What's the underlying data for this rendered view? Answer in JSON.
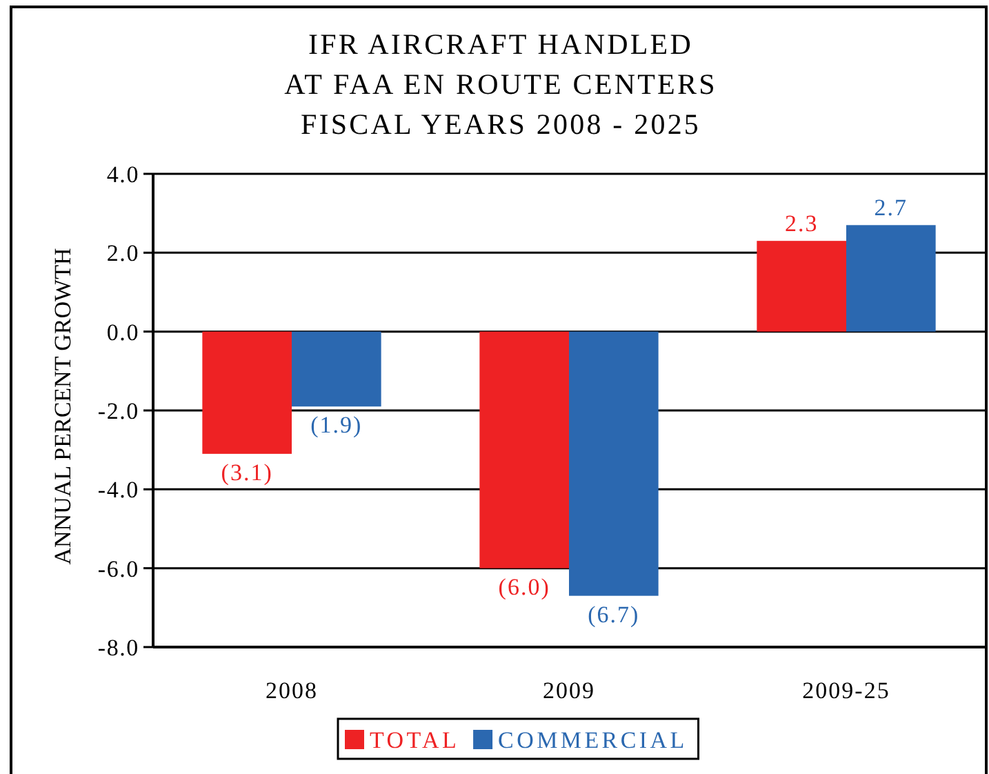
{
  "chart_data": {
    "type": "bar",
    "title": "IFR AIRCRAFT HANDLED\nAT FAA EN ROUTE CENTERS\nFISCAL YEARS 2008 - 2025",
    "ylabel": "ANNUAL PERCENT GROWTH",
    "categories": [
      "2008",
      "2009",
      "2009-25"
    ],
    "series": [
      {
        "name": "TOTAL",
        "color": "#ee2224",
        "values": [
          -3.1,
          -6.0,
          2.3
        ],
        "value_labels": [
          "(3.1)",
          "(6.0)",
          "2.3"
        ]
      },
      {
        "name": "COMMERCIAL",
        "color": "#2b68b0",
        "values": [
          -1.9,
          -6.7,
          2.7
        ],
        "value_labels": [
          "(1.9)",
          "(6.7)",
          "2.7"
        ]
      }
    ],
    "ylim": [
      -8,
      4
    ],
    "yticks": [
      {
        "value": -8,
        "label": "-8.0"
      },
      {
        "value": -6,
        "label": "-6.0"
      },
      {
        "value": -4,
        "label": "-4.0"
      },
      {
        "value": -2,
        "label": "-2.0"
      },
      {
        "value": 0,
        "label": "0.0"
      },
      {
        "value": 2,
        "label": "2.0"
      },
      {
        "value": 4,
        "label": "4.0"
      }
    ],
    "grid": "y",
    "legend": "bottom"
  }
}
